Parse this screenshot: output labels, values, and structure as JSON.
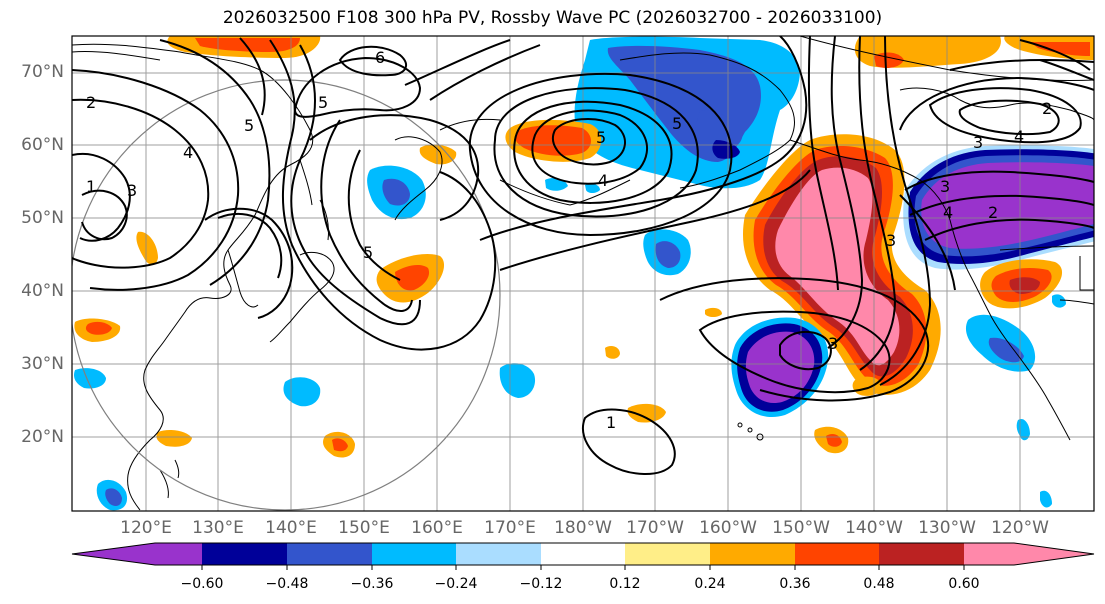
{
  "title": "2026032500 F108 300 hPa PV, Rossby Wave PC (2026032700 - 2026033100)",
  "lat_labels": [
    "70°N",
    "60°N",
    "50°N",
    "40°N",
    "30°N",
    "20°N"
  ],
  "lon_labels": [
    "120°E",
    "130°E",
    "140°E",
    "150°E",
    "160°E",
    "170°E",
    "180°W",
    "170°W",
    "160°W",
    "150°W",
    "140°W",
    "130°W",
    "120°W"
  ],
  "contour_labels": [
    "2",
    "1",
    "3",
    "4",
    "5",
    "6",
    "5",
    "5",
    "5",
    "5",
    "4",
    "3",
    "3",
    "2",
    "4",
    "3",
    "1",
    "2",
    "3",
    "4"
  ],
  "colorbar": {
    "ticks": [
      "−0.60",
      "−0.48",
      "−0.36",
      "−0.24",
      "−0.12",
      "0.12",
      "0.24",
      "0.36",
      "0.48",
      "0.60"
    ],
    "colors": [
      "#9933cc",
      "#000099",
      "#3355cc",
      "#00bbff",
      "#aaddff",
      "#ffffff",
      "#ffee88",
      "#ffaa00",
      "#ff4400",
      "#bb2222",
      "#ff88aa"
    ]
  }
}
